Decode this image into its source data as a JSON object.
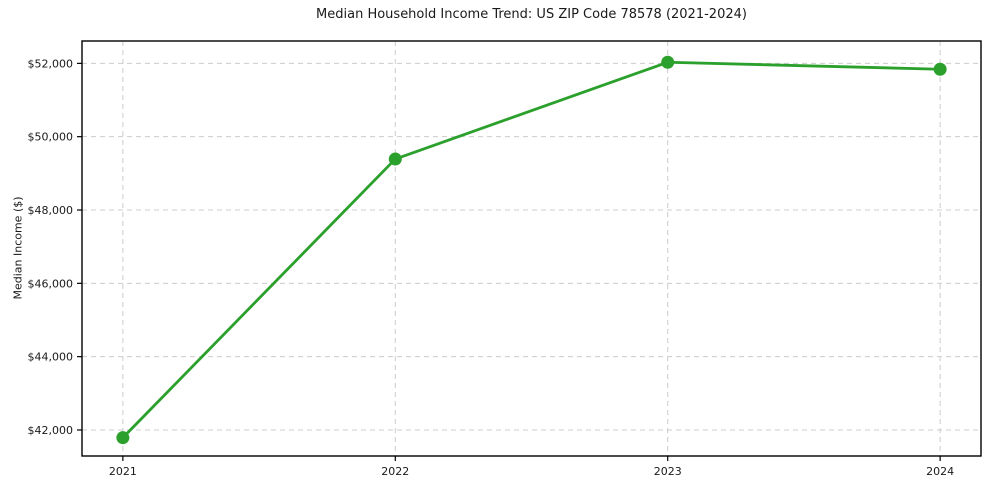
{
  "chart_data": {
    "type": "line",
    "title": "Median Household Income Trend: US ZIP Code 78578 (2021-2024)",
    "xlabel": "",
    "ylabel": "Median Income ($)",
    "categories": [
      "2021",
      "2022",
      "2023",
      "2024"
    ],
    "series": [
      {
        "values": [
          41790,
          49390,
          52030,
          51840
        ]
      }
    ],
    "ylim": [
      41290,
      52610
    ],
    "yticks": [
      42000,
      44000,
      46000,
      48000,
      50000,
      52000
    ],
    "ytick_labels": [
      "$42,000",
      "$44,000",
      "$46,000",
      "$48,000",
      "$50,000",
      "$52,000"
    ],
    "x_margin": 0.15,
    "grid": true,
    "grid_style": "dashed",
    "legend_position": "none",
    "colors": {
      "line": "#2ca02c",
      "marker": "#2ca02c",
      "grid": "#cccccc",
      "axis": "#000000",
      "text": "#1a1a1a",
      "background": "#ffffff"
    }
  }
}
